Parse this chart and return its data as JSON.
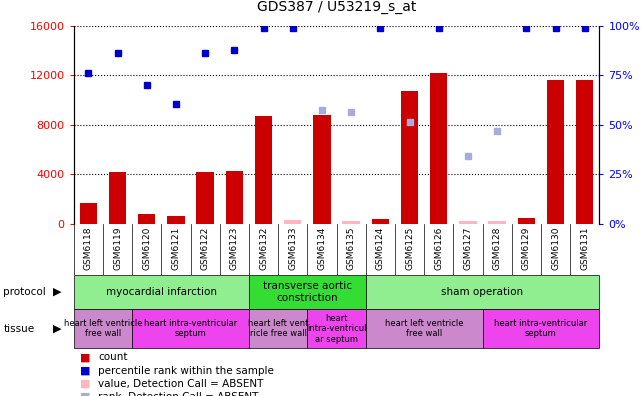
{
  "title": "GDS387 / U53219_s_at",
  "samples": [
    "GSM6118",
    "GSM6119",
    "GSM6120",
    "GSM6121",
    "GSM6122",
    "GSM6123",
    "GSM6132",
    "GSM6133",
    "GSM6134",
    "GSM6135",
    "GSM6124",
    "GSM6125",
    "GSM6126",
    "GSM6127",
    "GSM6128",
    "GSM6129",
    "GSM6130",
    "GSM6131"
  ],
  "count_values": [
    1700,
    4200,
    800,
    600,
    4200,
    4300,
    8700,
    null,
    8800,
    null,
    400,
    10700,
    12200,
    null,
    null,
    500,
    11600,
    11600
  ],
  "count_absent": [
    null,
    null,
    null,
    null,
    null,
    null,
    null,
    300,
    null,
    200,
    null,
    null,
    null,
    200,
    200,
    null,
    null,
    null
  ],
  "rank_values": [
    12200,
    13800,
    11200,
    9700,
    13800,
    14000,
    15800,
    15800,
    null,
    null,
    15800,
    null,
    15800,
    null,
    null,
    15800,
    15800,
    15800
  ],
  "rank_absent": [
    null,
    null,
    null,
    null,
    null,
    null,
    null,
    null,
    9200,
    9000,
    null,
    8200,
    null,
    5500,
    7500,
    null,
    null,
    null
  ],
  "ylim_left": [
    0,
    16000
  ],
  "ylim_right": [
    0,
    100
  ],
  "left_ticks": [
    0,
    4000,
    8000,
    12000,
    16000
  ],
  "right_ticks": [
    0,
    25,
    50,
    75,
    100
  ],
  "right_tick_labels": [
    "0%",
    "25%",
    "50%",
    "75%",
    "100%"
  ],
  "protocol_groups": [
    {
      "label": "myocardial infarction",
      "start": 0,
      "end": 5,
      "color": "#90EE90"
    },
    {
      "label": "transverse aortic\nconstriction",
      "start": 6,
      "end": 9,
      "color": "#33DD33"
    },
    {
      "label": "sham operation",
      "start": 10,
      "end": 17,
      "color": "#90EE90"
    }
  ],
  "tissue_groups": [
    {
      "label": "heart left ventricle\nfree wall",
      "start": 0,
      "end": 1,
      "color": "#CC88CC"
    },
    {
      "label": "heart intra-ventricular\nseptum",
      "start": 2,
      "end": 5,
      "color": "#EE44EE"
    },
    {
      "label": "heart left vent\nricle free wall",
      "start": 6,
      "end": 7,
      "color": "#CC88CC"
    },
    {
      "label": "heart\nintra-ventricul\nar septum",
      "start": 8,
      "end": 9,
      "color": "#EE44EE"
    },
    {
      "label": "heart left ventricle\nfree wall",
      "start": 10,
      "end": 13,
      "color": "#CC88CC"
    },
    {
      "label": "heart intra-ventricular\nseptum",
      "start": 14,
      "end": 17,
      "color": "#EE44EE"
    }
  ],
  "bar_color": "#CC0000",
  "bar_absent_color": "#FFB6C1",
  "rank_color": "#0000CC",
  "rank_absent_color": "#AAAADD",
  "xtick_bg": "#D8D8D8",
  "fig_bg": "#FFFFFF"
}
